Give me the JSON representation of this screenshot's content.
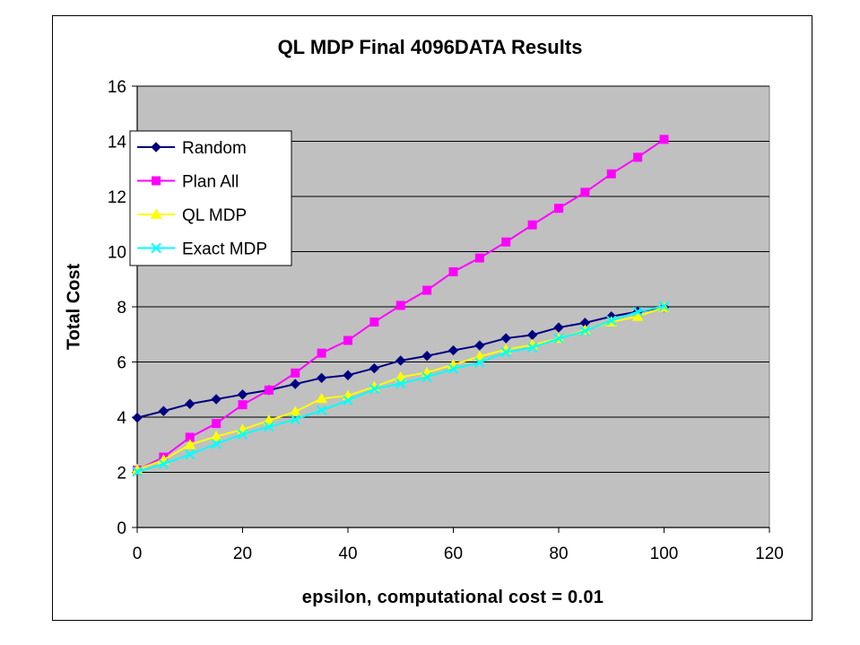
{
  "chart_data": {
    "type": "line",
    "title": "QL MDP Final 4096DATA Results",
    "xlabel": "epsilon, computational cost = 0.01",
    "ylabel": "Total Cost",
    "xlim": [
      0,
      120
    ],
    "ylim": [
      0,
      16
    ],
    "x_ticks": [
      "0",
      "20",
      "40",
      "60",
      "80",
      "100",
      "120"
    ],
    "y_ticks": [
      "0",
      "2",
      "4",
      "6",
      "8",
      "10",
      "12",
      "14",
      "16"
    ],
    "grid": "horizontal",
    "legend_position": "upper-left",
    "plot_background": "#C0C0C0",
    "x": [
      0,
      5,
      10,
      15,
      20,
      25,
      30,
      35,
      40,
      45,
      50,
      55,
      60,
      65,
      70,
      75,
      80,
      85,
      90,
      95,
      100
    ],
    "series": [
      {
        "name": "Random",
        "color": "#000080",
        "marker": "diamond",
        "values": [
          3.98,
          4.22,
          4.48,
          4.65,
          4.82,
          4.98,
          5.2,
          5.42,
          5.52,
          5.77,
          6.05,
          6.22,
          6.42,
          6.6,
          6.86,
          6.98,
          7.25,
          7.42,
          7.65,
          7.82,
          7.98
        ]
      },
      {
        "name": "Plan All",
        "color": "#FF00FF",
        "marker": "square",
        "values": [
          2.08,
          2.55,
          3.27,
          3.77,
          4.45,
          4.98,
          5.6,
          6.32,
          6.78,
          7.45,
          8.05,
          8.6,
          9.27,
          9.77,
          10.35,
          10.97,
          11.57,
          12.15,
          12.82,
          13.42,
          14.07
        ]
      },
      {
        "name": "QL MDP",
        "color": "#FFFF00",
        "marker": "triangle",
        "values": [
          2.1,
          2.45,
          3.0,
          3.3,
          3.55,
          3.88,
          4.2,
          4.67,
          4.78,
          5.1,
          5.45,
          5.62,
          5.9,
          6.2,
          6.45,
          6.62,
          6.85,
          7.15,
          7.45,
          7.65,
          7.98
        ]
      },
      {
        "name": "Exact MDP",
        "color": "#00FFFF",
        "marker": "x",
        "values": [
          2.02,
          2.3,
          2.65,
          3.03,
          3.38,
          3.65,
          3.92,
          4.25,
          4.6,
          5.02,
          5.22,
          5.45,
          5.75,
          5.98,
          6.35,
          6.52,
          6.85,
          7.12,
          7.5,
          7.82,
          8.02
        ]
      }
    ]
  }
}
